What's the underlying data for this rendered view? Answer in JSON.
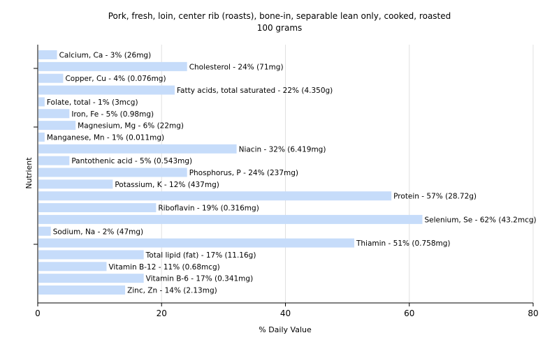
{
  "chart_data": {
    "type": "bar",
    "orientation": "horizontal",
    "title": "Pork, fresh, loin, center rib (roasts), bone-in, separable lean only, cooked, roasted",
    "subtitle": "100 grams",
    "xlabel": "% Daily Value",
    "ylabel": "Nutrient",
    "xlim": [
      0,
      80
    ],
    "xticks": [
      0,
      20,
      40,
      60,
      80
    ],
    "grid": true,
    "colors": {
      "bar": "#c6dcfa",
      "grid": "#e0e0e0",
      "axis": "#000000"
    },
    "categories": [
      "Calcium, Ca",
      "Cholesterol",
      "Copper, Cu",
      "Fatty acids, total saturated",
      "Folate, total",
      "Iron, Fe",
      "Magnesium, Mg",
      "Manganese, Mn",
      "Niacin",
      "Pantothenic acid",
      "Phosphorus, P",
      "Potassium, K",
      "Protein",
      "Riboflavin",
      "Selenium, Se",
      "Sodium, Na",
      "Thiamin",
      "Total lipid (fat)",
      "Vitamin B-12",
      "Vitamin B-6",
      "Zinc, Zn"
    ],
    "values": [
      3,
      24,
      4,
      22,
      1,
      5,
      6,
      1,
      32,
      5,
      24,
      12,
      57,
      19,
      62,
      2,
      51,
      17,
      11,
      17,
      14
    ],
    "labels": [
      "Calcium, Ca - 3% (26mg)",
      "Cholesterol - 24% (71mg)",
      "Copper, Cu - 4% (0.076mg)",
      "Fatty acids, total saturated - 22% (4.350g)",
      "Folate, total - 1% (3mcg)",
      "Iron, Fe - 5% (0.98mg)",
      "Magnesium, Mg - 6% (22mg)",
      "Manganese, Mn - 1% (0.011mg)",
      "Niacin - 32% (6.419mg)",
      "Pantothenic acid - 5% (0.543mg)",
      "Phosphorus, P - 24% (237mg)",
      "Potassium, K - 12% (437mg)",
      "Protein - 57% (28.72g)",
      "Riboflavin - 19% (0.316mg)",
      "Selenium, Se - 62% (43.2mcg)",
      "Sodium, Na - 2% (47mg)",
      "Thiamin - 51% (0.758mg)",
      "Total lipid (fat) - 17% (11.16g)",
      "Vitamin B-12 - 11% (0.68mcg)",
      "Vitamin B-6 - 17% (0.341mg)",
      "Zinc, Zn - 14% (2.13mg)"
    ]
  }
}
